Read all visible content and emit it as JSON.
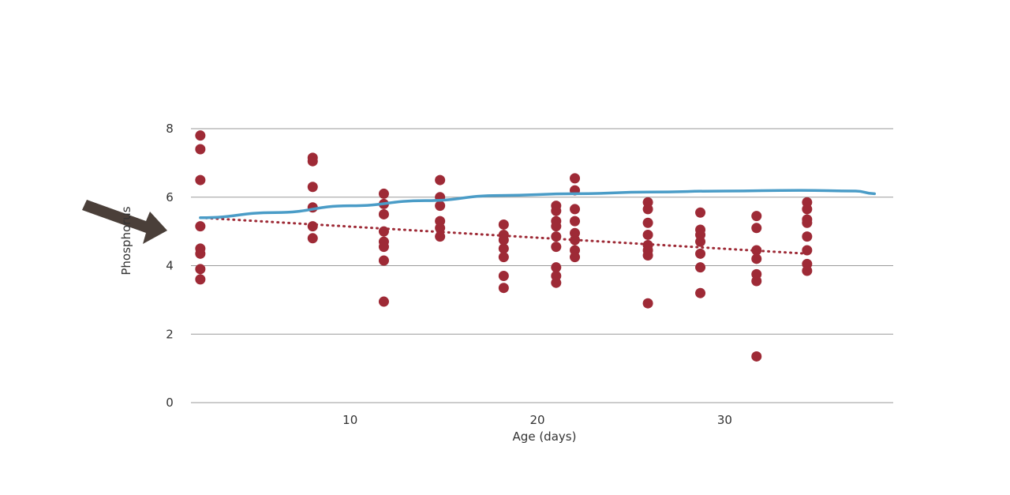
{
  "chart_data": {
    "type": "scatter",
    "title": "",
    "xlabel": "Age (days)",
    "ylabel": "Phosphorus",
    "xlim": [
      1.5,
      39
    ],
    "ylim": [
      0,
      8
    ],
    "xticks": [
      10,
      20,
      30
    ],
    "yticks": [
      0,
      2,
      4,
      6,
      8
    ],
    "grid": true,
    "legend": "none",
    "colors": {
      "points": "#9e2a36",
      "trend": "#9e2a36",
      "smooth": "#4a9cc7",
      "grid": "#9a9a9a",
      "arrow": "#4a3f39"
    },
    "series": [
      {
        "type": "scatter",
        "points": [
          [
            2,
            7.8
          ],
          [
            2,
            7.4
          ],
          [
            2,
            6.5
          ],
          [
            2,
            5.15
          ],
          [
            2,
            4.5
          ],
          [
            2,
            4.35
          ],
          [
            2,
            3.9
          ],
          [
            2,
            3.6
          ],
          [
            8,
            7.15
          ],
          [
            8,
            7.05
          ],
          [
            8,
            6.3
          ],
          [
            8,
            5.7
          ],
          [
            8,
            5.15
          ],
          [
            8,
            4.8
          ],
          [
            11.8,
            6.1
          ],
          [
            11.8,
            5.8
          ],
          [
            11.8,
            5.5
          ],
          [
            11.8,
            5.0
          ],
          [
            11.8,
            4.7
          ],
          [
            11.8,
            4.55
          ],
          [
            11.8,
            4.15
          ],
          [
            11.8,
            2.95
          ],
          [
            14.8,
            6.5
          ],
          [
            14.8,
            6.0
          ],
          [
            14.8,
            5.75
          ],
          [
            14.8,
            5.3
          ],
          [
            14.8,
            5.1
          ],
          [
            14.8,
            4.85
          ],
          [
            18.2,
            5.2
          ],
          [
            18.2,
            4.9
          ],
          [
            18.2,
            4.75
          ],
          [
            18.2,
            4.5
          ],
          [
            18.2,
            4.25
          ],
          [
            18.2,
            3.7
          ],
          [
            18.2,
            3.35
          ],
          [
            21,
            5.75
          ],
          [
            21,
            5.6
          ],
          [
            21,
            5.3
          ],
          [
            21,
            5.15
          ],
          [
            21,
            4.85
          ],
          [
            21,
            4.55
          ],
          [
            21,
            3.95
          ],
          [
            21,
            3.7
          ],
          [
            21,
            3.5
          ],
          [
            22,
            6.55
          ],
          [
            22,
            6.2
          ],
          [
            22,
            5.65
          ],
          [
            22,
            5.3
          ],
          [
            22,
            4.95
          ],
          [
            22,
            4.75
          ],
          [
            22,
            4.45
          ],
          [
            22,
            4.25
          ],
          [
            25.9,
            5.85
          ],
          [
            25.9,
            5.65
          ],
          [
            25.9,
            5.25
          ],
          [
            25.9,
            4.9
          ],
          [
            25.9,
            4.6
          ],
          [
            25.9,
            4.45
          ],
          [
            25.9,
            4.3
          ],
          [
            25.9,
            2.9
          ],
          [
            28.7,
            5.55
          ],
          [
            28.7,
            5.05
          ],
          [
            28.7,
            4.9
          ],
          [
            28.7,
            4.7
          ],
          [
            28.7,
            4.35
          ],
          [
            28.7,
            3.95
          ],
          [
            28.7,
            3.2
          ],
          [
            31.7,
            5.45
          ],
          [
            31.7,
            5.1
          ],
          [
            31.7,
            4.45
          ],
          [
            31.7,
            4.2
          ],
          [
            31.7,
            3.75
          ],
          [
            31.7,
            3.55
          ],
          [
            31.7,
            1.35
          ],
          [
            34.4,
            5.85
          ],
          [
            34.4,
            5.65
          ],
          [
            34.4,
            5.35
          ],
          [
            34.4,
            5.25
          ],
          [
            34.4,
            4.85
          ],
          [
            34.4,
            4.45
          ],
          [
            34.4,
            4.05
          ],
          [
            34.4,
            3.85
          ]
        ]
      },
      {
        "type": "line",
        "style": "dotted",
        "x": [
          2,
          34.4
        ],
        "y": [
          5.4,
          4.35
        ]
      },
      {
        "type": "line",
        "style": "smooth",
        "x": [
          2,
          6,
          10,
          14,
          18,
          22,
          26,
          30,
          34,
          37,
          38
        ],
        "y": [
          5.4,
          5.55,
          5.75,
          5.9,
          6.05,
          6.1,
          6.15,
          6.18,
          6.2,
          6.18,
          6.1
        ]
      }
    ]
  }
}
